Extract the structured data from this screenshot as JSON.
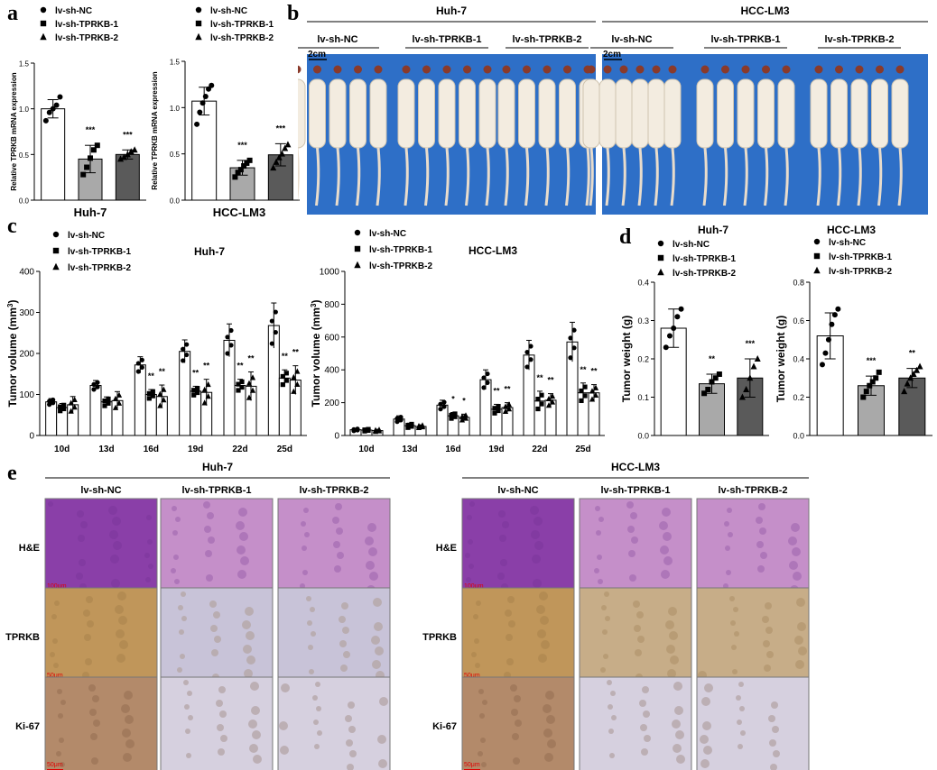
{
  "panel_labels": {
    "a": "a",
    "b": "b",
    "c": "c",
    "d": "d",
    "e": "e"
  },
  "legend_labels": [
    "lv-sh-NC",
    "lv-sh-TPRKB-1",
    "lv-sh-TPRKB-2"
  ],
  "colors": {
    "nc": "#ffffff",
    "sh1": "#a9a9a9",
    "sh2": "#5a5a5a",
    "axis": "#000000",
    "photo_bg": "#2e6fc7",
    "he": "#9b4fb0",
    "ihc": "#c9a66b"
  },
  "chart_data": [
    {
      "id": "a1",
      "type": "bar",
      "xlabel": "Huh-7",
      "ylabel": "Relative TPRKB mRNA expression",
      "categories": [
        "lv-sh-NC",
        "lv-sh-TPRKB-1",
        "lv-sh-TPRKB-2"
      ],
      "values": [
        1.0,
        0.45,
        0.5
      ],
      "errors": [
        0.1,
        0.15,
        0.05
      ],
      "points": [
        [
          0.87,
          0.96,
          1.0,
          1.04,
          1.13
        ],
        [
          0.28,
          0.36,
          0.46,
          0.55,
          0.6
        ],
        [
          0.45,
          0.47,
          0.5,
          0.53,
          0.55
        ]
      ],
      "sig": [
        "",
        "***",
        "***"
      ],
      "ylim": [
        0,
        1.5
      ],
      "yticks": [
        "0.0",
        "0.5",
        "1.0",
        "1.5"
      ]
    },
    {
      "id": "a2",
      "type": "bar",
      "xlabel": "HCC-LM3",
      "ylabel": "Relative TPRKB mRNA expression",
      "categories": [
        "lv-sh-NC",
        "lv-sh-TPRKB-1",
        "lv-sh-TPRKB-2"
      ],
      "values": [
        1.07,
        0.35,
        0.49
      ],
      "errors": [
        0.15,
        0.08,
        0.12
      ],
      "points": [
        [
          0.82,
          0.95,
          1.05,
          1.12,
          1.2,
          1.24
        ],
        [
          0.25,
          0.3,
          0.33,
          0.37,
          0.4,
          0.43
        ],
        [
          0.35,
          0.41,
          0.46,
          0.5,
          0.56,
          0.6
        ]
      ],
      "sig": [
        "",
        "***",
        "***"
      ],
      "ylim": [
        0,
        1.5
      ],
      "yticks": [
        "0.0",
        "0.5",
        "1.0",
        "1.5"
      ]
    },
    {
      "id": "c1",
      "type": "bar",
      "title": "Huh-7",
      "ylabel": "Tumor volume (mm3)",
      "categories": [
        "10d",
        "13d",
        "16d",
        "19d",
        "22d",
        "25d"
      ],
      "series": [
        {
          "name": "lv-sh-NC",
          "values": [
            82,
            122,
            172,
            205,
            232,
            268
          ],
          "errors": [
            8,
            12,
            20,
            28,
            40,
            55
          ]
        },
        {
          "name": "lv-sh-TPRKB-1",
          "values": [
            68,
            82,
            100,
            108,
            122,
            140
          ],
          "errors": [
            10,
            12,
            12,
            12,
            15,
            20
          ]
        },
        {
          "name": "lv-sh-TPRKB-2",
          "values": [
            75,
            85,
            95,
            105,
            120,
            135
          ],
          "errors": [
            20,
            22,
            28,
            32,
            35,
            35
          ]
        }
      ],
      "sig": [
        [
          "",
          "",
          ""
        ],
        [
          "",
          "",
          ""
        ],
        [
          "",
          "**",
          "**"
        ],
        [
          "",
          "**",
          "**"
        ],
        [
          "",
          "**",
          "**"
        ],
        [
          "",
          "**",
          "**"
        ]
      ],
      "ylim": [
        0,
        400
      ],
      "yticks": [
        "0",
        "100",
        "200",
        "300",
        "400"
      ]
    },
    {
      "id": "c2",
      "type": "bar",
      "title": "HCC-LM3",
      "ylabel": "Tumor volume (mm3)",
      "categories": [
        "10d",
        "13d",
        "16d",
        "19d",
        "22d",
        "25d"
      ],
      "series": [
        {
          "name": "lv-sh-NC",
          "values": [
            35,
            100,
            185,
            340,
            490,
            570
          ],
          "errors": [
            8,
            20,
            30,
            60,
            90,
            120
          ]
        },
        {
          "name": "lv-sh-TPRKB-1",
          "values": [
            33,
            60,
            120,
            160,
            210,
            260
          ],
          "errors": [
            8,
            15,
            20,
            30,
            60,
            60
          ]
        },
        {
          "name": "lv-sh-TPRKB-2",
          "values": [
            30,
            55,
            110,
            170,
            215,
            260
          ],
          "errors": [
            8,
            10,
            20,
            30,
            40,
            50
          ]
        }
      ],
      "sig": [
        [
          "",
          "",
          ""
        ],
        [
          "",
          "",
          ""
        ],
        [
          "",
          "*",
          "*"
        ],
        [
          "",
          "**",
          "**"
        ],
        [
          "",
          "**",
          "**"
        ],
        [
          "",
          "**",
          "**"
        ]
      ],
      "ylim": [
        0,
        1000
      ],
      "yticks": [
        "0",
        "200",
        "400",
        "600",
        "800",
        "1000"
      ]
    },
    {
      "id": "d1",
      "type": "bar",
      "title": "Huh-7",
      "ylabel": "Tumor weight (g)",
      "categories": [
        "lv-sh-NC",
        "lv-sh-TPRKB-1",
        "lv-sh-TPRKB-2"
      ],
      "values": [
        0.28,
        0.135,
        0.15
      ],
      "errors": [
        0.05,
        0.025,
        0.05
      ],
      "points": [
        [
          0.23,
          0.26,
          0.28,
          0.31,
          0.33
        ],
        [
          0.11,
          0.12,
          0.14,
          0.15,
          0.16
        ],
        [
          0.1,
          0.12,
          0.15,
          0.18,
          0.2
        ]
      ],
      "sig": [
        "",
        "**",
        "***"
      ],
      "ylim": [
        0,
        0.4
      ],
      "yticks": [
        "0.0",
        "0.1",
        "0.2",
        "0.3",
        "0.4"
      ]
    },
    {
      "id": "d2",
      "type": "bar",
      "title": "HCC-LM3",
      "ylabel": "Tumor weight (g)",
      "categories": [
        "lv-sh-NC",
        "lv-sh-TPRKB-1",
        "lv-sh-TPRKB-2"
      ],
      "values": [
        0.52,
        0.26,
        0.3
      ],
      "errors": [
        0.12,
        0.05,
        0.05
      ],
      "points": [
        [
          0.37,
          0.43,
          0.5,
          0.58,
          0.63,
          0.66
        ],
        [
          0.2,
          0.23,
          0.26,
          0.28,
          0.3,
          0.33
        ],
        [
          0.23,
          0.27,
          0.3,
          0.32,
          0.34,
          0.36
        ]
      ],
      "sig": [
        "",
        "***",
        "**"
      ],
      "ylim": [
        0,
        0.8
      ],
      "yticks": [
        "0.0",
        "0.2",
        "0.4",
        "0.6",
        "0.8"
      ]
    }
  ],
  "photos": {
    "groups": [
      {
        "title": "Huh-7",
        "labels": [
          "lv-sh-NC",
          "lv-sh-TPRKB-1",
          "lv-sh-TPRKB-2"
        ],
        "scale": "2cm"
      },
      {
        "title": "HCC-LM3",
        "labels": [
          "lv-sh-NC",
          "lv-sh-TPRKB-1",
          "lv-sh-TPRKB-2"
        ],
        "scale": "2cm"
      }
    ]
  },
  "histology": {
    "groups": [
      {
        "title": "Huh-7",
        "columns": [
          "lv-sh-NC",
          "lv-sh-TPRKB-1",
          "lv-sh-TPRKB-2"
        ]
      },
      {
        "title": "HCC-LM3",
        "columns": [
          "lv-sh-NC",
          "lv-sh-TPRKB-1",
          "lv-sh-TPRKB-2"
        ]
      }
    ],
    "rows": [
      "H&E",
      "TPRKB",
      "Ki-67"
    ],
    "scales": [
      "100μm",
      "50μm",
      "50μm"
    ]
  }
}
